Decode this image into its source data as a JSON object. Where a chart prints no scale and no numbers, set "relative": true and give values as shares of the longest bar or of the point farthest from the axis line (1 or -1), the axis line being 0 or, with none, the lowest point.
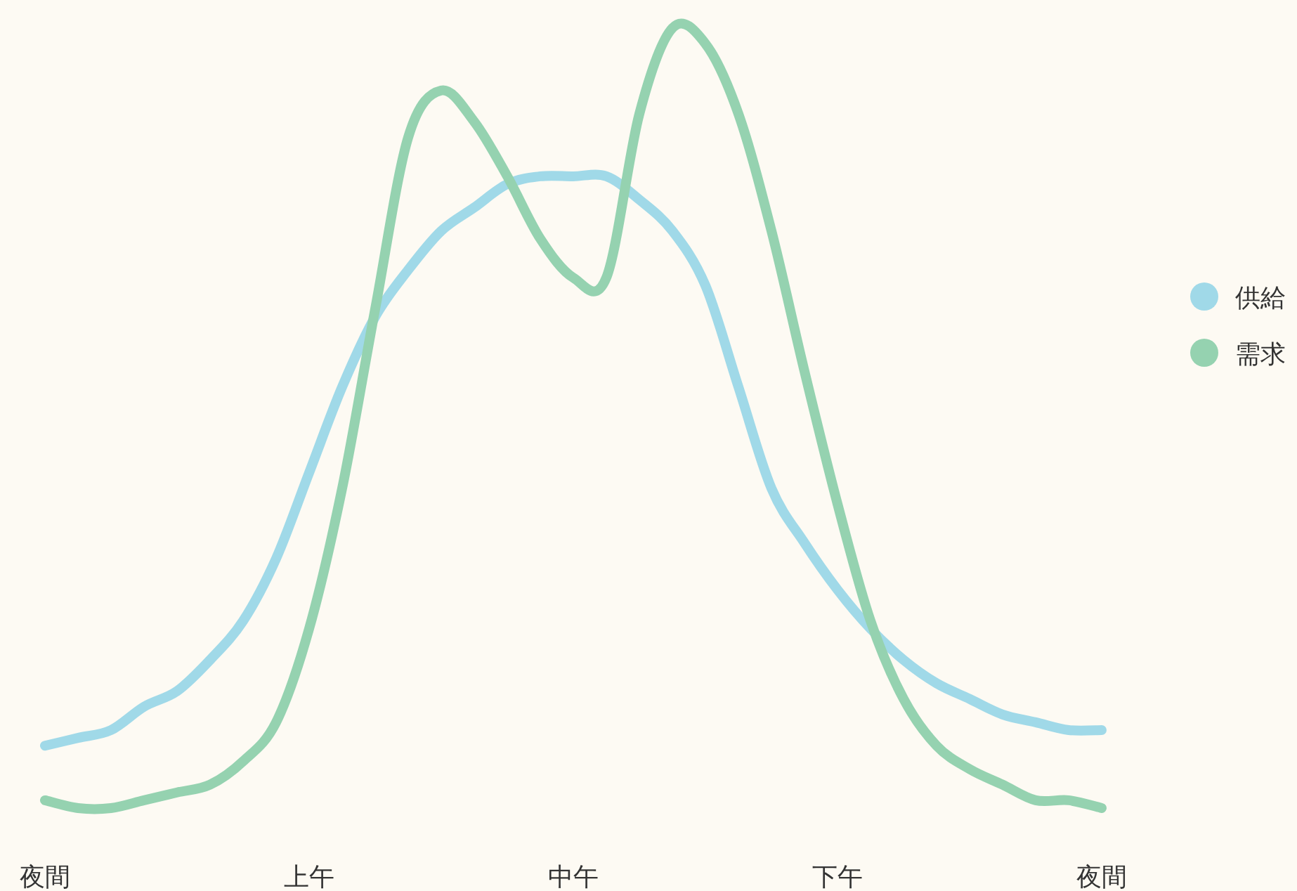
{
  "chart_data": {
    "type": "line",
    "relative": true,
    "legend": "right",
    "marker": "none",
    "grid": false,
    "categories": [
      "夜間",
      null,
      null,
      null,
      null,
      null,
      null,
      null,
      "上午",
      null,
      null,
      null,
      null,
      null,
      null,
      null,
      "中午",
      null,
      null,
      null,
      null,
      null,
      null,
      null,
      "下午",
      null,
      null,
      null,
      null,
      null,
      null,
      null,
      "夜間"
    ],
    "series": [
      {
        "name": "供給",
        "color": "#a0d9e8",
        "values": [
          0.08,
          0.09,
          0.1,
          0.13,
          0.15,
          0.19,
          0.24,
          0.32,
          0.43,
          0.54,
          0.63,
          0.69,
          0.74,
          0.77,
          0.8,
          0.81,
          0.81,
          0.81,
          0.78,
          0.74,
          0.67,
          0.54,
          0.41,
          0.34,
          0.28,
          0.23,
          0.19,
          0.16,
          0.14,
          0.12,
          0.11,
          0.1,
          0.1
        ]
      },
      {
        "name": "需求",
        "color": "#95d2b0",
        "values": [
          0.01,
          0,
          0,
          0.01,
          0.02,
          0.03,
          0.06,
          0.11,
          0.23,
          0.41,
          0.64,
          0.86,
          0.92,
          0.88,
          0.81,
          0.73,
          0.68,
          0.68,
          0.89,
          1,
          0.98,
          0.89,
          0.74,
          0.56,
          0.39,
          0.24,
          0.14,
          0.08,
          0.05,
          0.03,
          0.01,
          0.01,
          0
        ]
      }
    ]
  }
}
